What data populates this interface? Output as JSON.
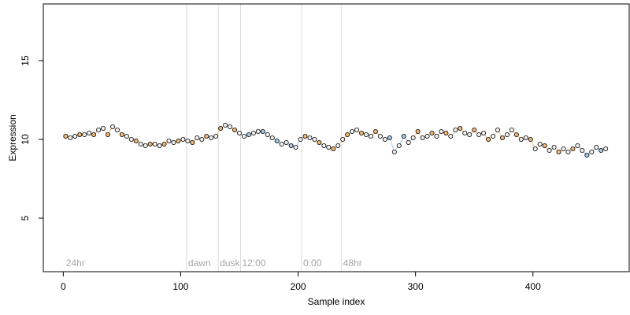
{
  "chart_data": {
    "type": "scatter",
    "title": "",
    "xlabel": "Sample index",
    "ylabel": "Expression",
    "xlim": [
      -17,
      482
    ],
    "ylim": [
      1.6,
      18.6
    ],
    "x_ticks": [
      0,
      100,
      200,
      300,
      400
    ],
    "y_ticks": [
      5,
      10,
      15
    ],
    "grid": false,
    "legend": "none",
    "regions": [
      {
        "label": "24hr",
        "x_start": 1
      },
      {
        "label": "dawn",
        "x_start": 105
      },
      {
        "label": "dusk",
        "x_start": 132
      },
      {
        "label": "12:00",
        "x_start": 151
      },
      {
        "label": "0:00",
        "x_start": 203
      },
      {
        "label": "48hr",
        "x_start": 237
      }
    ],
    "series": [
      {
        "marker": "open-circle",
        "color_note": "points filled orange in some segments, light blue in others; thin connecting segments in light blue/orange",
        "x": [
          2,
          6,
          10,
          14,
          18,
          22,
          26,
          30,
          34,
          38,
          42,
          46,
          50,
          54,
          58,
          62,
          66,
          70,
          74,
          78,
          82,
          86,
          90,
          94,
          98,
          102,
          106,
          110,
          114,
          118,
          122,
          126,
          130,
          134,
          138,
          142,
          146,
          150,
          154,
          158,
          162,
          166,
          170,
          174,
          178,
          182,
          186,
          190,
          194,
          198,
          202,
          206,
          210,
          214,
          218,
          222,
          226,
          230,
          234,
          238,
          242,
          246,
          250,
          254,
          258,
          262,
          266,
          270,
          274,
          278,
          282,
          286,
          290,
          294,
          298,
          302,
          306,
          310,
          314,
          318,
          322,
          326,
          330,
          334,
          338,
          342,
          346,
          350,
          354,
          358,
          362,
          366,
          370,
          374,
          378,
          382,
          386,
          390,
          394,
          398,
          402,
          406,
          410,
          414,
          418,
          422,
          426,
          430,
          434,
          438,
          442,
          446,
          450,
          454,
          458,
          462
        ],
        "y": [
          10.2,
          10.1,
          10.2,
          10.3,
          10.3,
          10.4,
          10.3,
          10.6,
          10.7,
          10.3,
          10.8,
          10.6,
          10.3,
          10.2,
          10.0,
          9.9,
          9.7,
          9.6,
          9.7,
          9.7,
          9.6,
          9.7,
          9.9,
          9.8,
          9.9,
          10.0,
          9.9,
          9.8,
          10.1,
          10.0,
          10.2,
          10.1,
          10.2,
          10.7,
          10.9,
          10.8,
          10.6,
          10.4,
          10.2,
          10.3,
          10.4,
          10.5,
          10.5,
          10.3,
          10.1,
          9.9,
          9.7,
          9.8,
          9.6,
          9.5,
          10.0,
          10.2,
          10.1,
          10.0,
          9.8,
          9.6,
          9.5,
          9.4,
          9.6,
          10.0,
          10.3,
          10.5,
          10.6,
          10.4,
          10.3,
          10.2,
          10.5,
          10.2,
          10.0,
          10.1,
          9.2,
          9.6,
          10.2,
          9.8,
          10.1,
          10.5,
          10.1,
          10.2,
          10.4,
          10.2,
          10.5,
          10.4,
          10.2,
          10.6,
          10.7,
          10.4,
          10.3,
          10.6,
          10.3,
          10.4,
          10.0,
          10.2,
          10.6,
          10.1,
          10.3,
          10.6,
          10.3,
          10.0,
          10.1,
          10.0,
          9.4,
          9.7,
          9.6,
          9.3,
          9.5,
          9.2,
          9.4,
          9.2,
          9.4,
          9.6,
          9.3,
          9.0,
          9.2,
          9.5,
          9.3,
          9.4
        ]
      }
    ]
  }
}
